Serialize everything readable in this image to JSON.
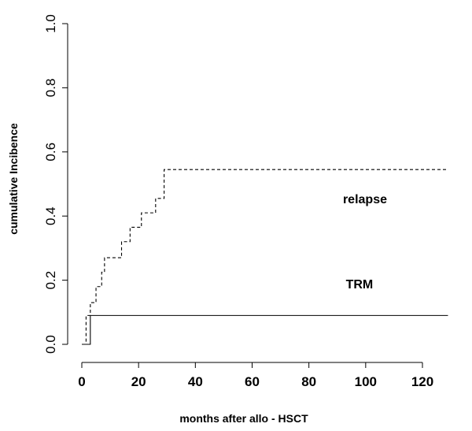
{
  "chart_data": {
    "type": "line",
    "title": "",
    "xlabel": "months  after allo - HSCT",
    "ylabel": "cumulative  Incibence",
    "xlim": [
      0,
      130
    ],
    "ylim": [
      0.0,
      1.0
    ],
    "x_ticks": [
      "0",
      "20",
      "40",
      "60",
      "80",
      "100",
      "120"
    ],
    "y_ticks": [
      "0.0",
      "0.2",
      "0.4",
      "0.6",
      "0.8",
      "1.0"
    ],
    "grid": false,
    "series": [
      {
        "name": "relapse",
        "step": true,
        "line_style": "dashed",
        "x": [
          0.5,
          1.5,
          3,
          5,
          7,
          8,
          14,
          17,
          21,
          26,
          29,
          129
        ],
        "y": [
          0.0,
          0.09,
          0.13,
          0.18,
          0.225,
          0.27,
          0.32,
          0.365,
          0.41,
          0.455,
          0.545,
          0.545
        ]
      },
      {
        "name": "TRM",
        "step": true,
        "line_style": "solid",
        "x": [
          0,
          3,
          129
        ],
        "y": [
          0.0,
          0.09,
          0.09
        ]
      }
    ],
    "annotations": [
      {
        "text": "relapse",
        "x": 92,
        "y": 0.44
      },
      {
        "text": "TRM",
        "x": 93,
        "y": 0.175
      }
    ]
  }
}
